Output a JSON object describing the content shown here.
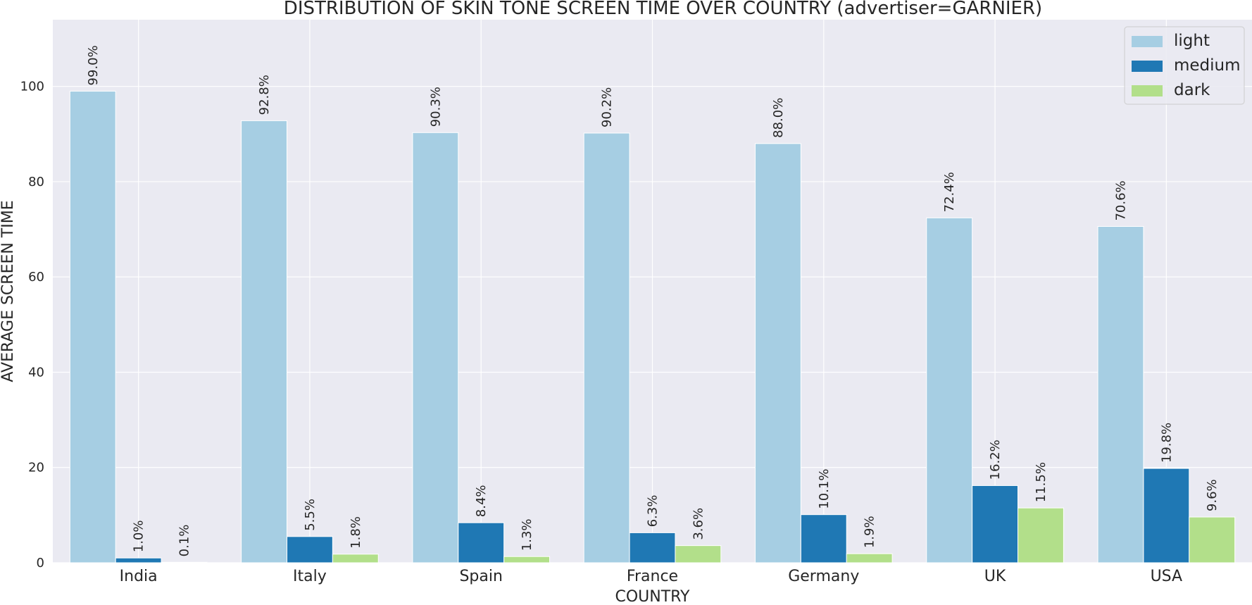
{
  "chart_data": {
    "type": "bar",
    "title": "DISTRIBUTION OF SKIN TONE SCREEN TIME OVER COUNTRY (advertiser=GARNIER)",
    "xlabel": "COUNTRY",
    "ylabel": "AVERAGE SCREEN TIME",
    "ylim": [
      0,
      114
    ],
    "yticks": [
      0,
      20,
      40,
      60,
      80,
      100
    ],
    "grid": true,
    "legend_position": "top-right",
    "categories": [
      "India",
      "Italy",
      "Spain",
      "France",
      "Germany",
      "UK",
      "USA"
    ],
    "series": [
      {
        "name": "light",
        "color": "#a6cee3",
        "values": [
          99.0,
          92.8,
          90.3,
          90.2,
          88.0,
          72.4,
          70.6
        ],
        "labels": [
          "99.0%",
          "92.8%",
          "90.3%",
          "90.2%",
          "88.0%",
          "72.4%",
          "70.6%"
        ]
      },
      {
        "name": "medium",
        "color": "#1f78b4",
        "values": [
          1.0,
          5.5,
          8.4,
          6.3,
          10.1,
          16.2,
          19.8
        ],
        "labels": [
          "1.0%",
          "5.5%",
          "8.4%",
          "6.3%",
          "10.1%",
          "16.2%",
          "19.8%"
        ]
      },
      {
        "name": "dark",
        "color": "#b2df8a",
        "values": [
          0.1,
          1.8,
          1.3,
          3.6,
          1.9,
          11.5,
          9.6
        ],
        "labels": [
          "0.1%",
          "1.8%",
          "1.3%",
          "3.6%",
          "1.9%",
          "11.5%",
          "9.6%"
        ]
      }
    ]
  }
}
